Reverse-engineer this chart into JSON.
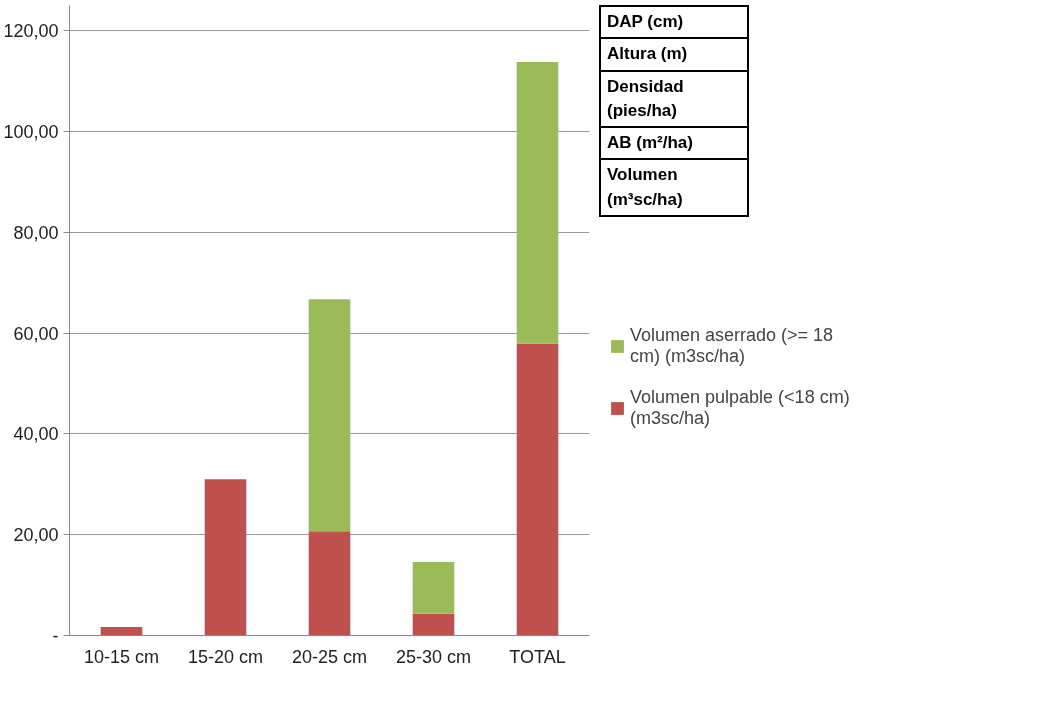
{
  "chart_data": {
    "type": "bar",
    "stacked": true,
    "categories": [
      "10-15 cm",
      "15-20 cm",
      "20-25 cm",
      "25-30 cm",
      "TOTAL"
    ],
    "series": [
      {
        "name": "Volumen pulpable (<18 cm) (m3sc/ha)",
        "color": "#c0504d",
        "values": [
          1.7,
          31.0,
          20.7,
          4.3,
          57.9
        ]
      },
      {
        "name": "Volumen aserrado (>= 18 cm) (m3sc/ha)",
        "color": "#9bbb59",
        "values": [
          0,
          0,
          46.0,
          10.3,
          55.9
        ]
      }
    ],
    "ylim": [
      0,
      125
    ],
    "yticks": [
      {
        "value": 0,
        "label": "-"
      },
      {
        "value": 20,
        "label": "20,00"
      },
      {
        "value": 40,
        "label": "40,00"
      },
      {
        "value": 60,
        "label": "60,00"
      },
      {
        "value": 80,
        "label": "80,00"
      },
      {
        "value": 100,
        "label": "100,00"
      },
      {
        "value": 120,
        "label": "120,00"
      }
    ],
    "grid": "y",
    "legend": "right",
    "annotations": [
      "DAP (cm)",
      "Altura (m)",
      "Densidad (pies/ha)",
      "AB (m²/ha)",
      "Volumen (m³sc/ha)"
    ]
  }
}
